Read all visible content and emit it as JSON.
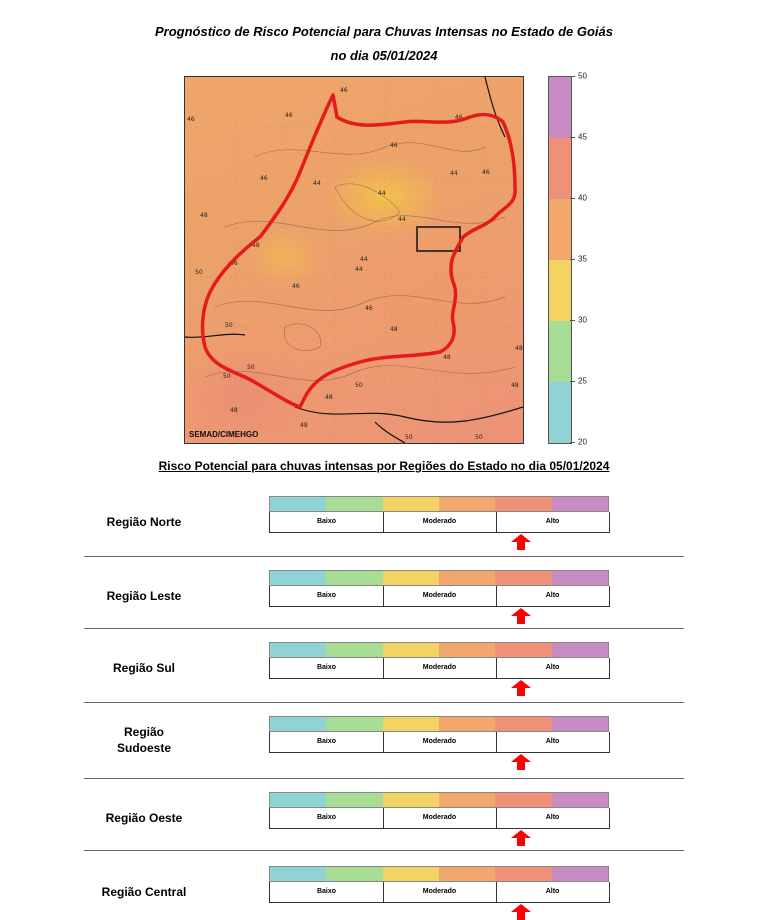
{
  "header": {
    "title_line1": "Prognóstico de Risco Potencial para Chuvas Intensas no Estado de Goiás",
    "title_line2": "no dia 05/01/2024"
  },
  "map": {
    "credit": "SEMAD/CIMEHGO",
    "contour_labels": [
      "46",
      "46",
      "46",
      "46",
      "46",
      "46",
      "44",
      "44",
      "44",
      "44",
      "44",
      "46",
      "48",
      "48",
      "50",
      "46",
      "46",
      "44",
      "46",
      "48",
      "48",
      "50",
      "48",
      "50",
      "50",
      "48",
      "48",
      "50",
      "48",
      "48",
      "50",
      "50"
    ]
  },
  "scale": {
    "ticks": [
      "50",
      "45",
      "40",
      "35",
      "30",
      "25",
      "20"
    ],
    "colors": [
      "#c98bc4",
      "#ee9178",
      "#f2a86c",
      "#f2d364",
      "#a8dd96",
      "#8fd3d4"
    ]
  },
  "section_title": "Risco Potencial para chuvas intensas por Regiões do Estado no dia 05/01/2024",
  "risk_bar": {
    "colors": [
      "#8fd3d4",
      "#a8dd96",
      "#f2d364",
      "#f2a86c",
      "#ee9178",
      "#c98bc4"
    ],
    "levels": [
      "Baixo",
      "Moderado",
      "Alto"
    ],
    "arrow_color": "#ff0000"
  },
  "regions": [
    {
      "name": "Região Norte",
      "risk_level": "Alto"
    },
    {
      "name": "Região Leste",
      "risk_level": "Alto"
    },
    {
      "name": "Região Sul",
      "risk_level": "Alto"
    },
    {
      "name": "Região\nSudoeste",
      "risk_level": "Alto"
    },
    {
      "name": "Região Oeste",
      "risk_level": "Alto"
    },
    {
      "name": "Região Central",
      "risk_level": "Alto"
    }
  ]
}
